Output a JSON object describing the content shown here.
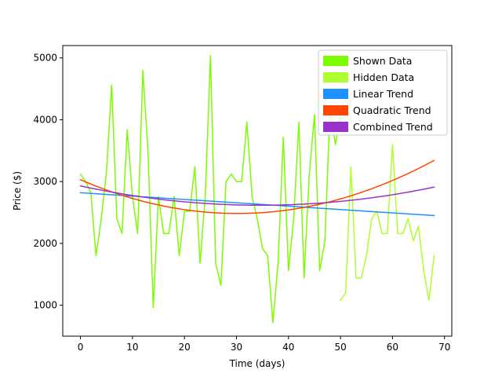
{
  "chart_data": {
    "type": "line",
    "title": "",
    "xlabel": "Time (days)",
    "ylabel": "Price ($)",
    "xlim": [
      -3.4,
      71.4
    ],
    "ylim": [
      500,
      5200
    ],
    "xticks": [
      0,
      10,
      20,
      30,
      40,
      50,
      60,
      70
    ],
    "yticks": [
      1000,
      2000,
      3000,
      4000,
      5000
    ],
    "grid": false,
    "legend_position": "top-right",
    "legend": [
      {
        "label": "Shown Data",
        "color": "#7cfc00"
      },
      {
        "label": "Hidden Data",
        "color": "#adff2f"
      },
      {
        "label": "Linear Trend",
        "color": "#1e90ff"
      },
      {
        "label": "Quadratic Trend",
        "color": "#ff4500"
      },
      {
        "label": "Combined Trend",
        "color": "#9932cc"
      }
    ],
    "series": [
      {
        "name": "Shown Data",
        "color": "#7cfc00",
        "x": [
          0,
          1,
          2,
          3,
          4,
          5,
          6,
          7,
          8,
          9,
          10,
          11,
          12,
          13,
          14,
          15,
          16,
          17,
          18,
          19,
          20,
          21,
          22,
          23,
          24,
          25,
          26,
          27,
          28,
          29,
          30,
          31,
          32,
          33,
          34,
          35,
          36,
          37,
          38,
          39,
          40,
          41,
          42,
          43,
          44,
          45,
          46,
          47,
          48,
          49,
          50
        ],
        "y": [
          3120,
          3000,
          2820,
          1800,
          2400,
          3150,
          4560,
          2400,
          2160,
          3840,
          2760,
          2160,
          4800,
          3480,
          960,
          2760,
          2160,
          2160,
          2760,
          1800,
          2520,
          2520,
          3240,
          1680,
          2760,
          5040,
          1680,
          1320,
          3000,
          3120,
          3000,
          3000,
          3960,
          2760,
          2400,
          1920,
          1800,
          720,
          1680,
          3720,
          1560,
          2400,
          3960,
          1440,
          3120,
          4080,
          1560,
          2040,
          4200,
          3600,
          4080
        ]
      },
      {
        "name": "Hidden Data",
        "color": "#adff2f",
        "x": [
          50,
          51,
          52,
          53,
          54,
          55,
          56,
          57,
          58,
          59,
          60,
          61,
          62,
          63,
          64,
          65,
          66,
          67,
          68
        ],
        "y": [
          1080,
          1200,
          3240,
          1440,
          1440,
          1800,
          2400,
          2520,
          2160,
          2160,
          3600,
          2160,
          2160,
          2400,
          2040,
          2280,
          1560,
          1080,
          1800
        ]
      },
      {
        "name": "Linear Trend",
        "color": "#1e90ff",
        "x": [
          0,
          68
        ],
        "y": [
          2820,
          2450
        ]
      },
      {
        "name": "Quadratic Trend",
        "color": "#ff4500",
        "quadratic": {
          "a": 0.6,
          "b": -36.2,
          "c": 3030
        },
        "x_range": [
          0,
          68
        ]
      },
      {
        "name": "Combined Trend",
        "color": "#9932cc",
        "quadratic": {
          "a": 0.262,
          "b": -18.1,
          "c": 2930
        },
        "x_range": [
          0,
          68
        ]
      }
    ]
  }
}
